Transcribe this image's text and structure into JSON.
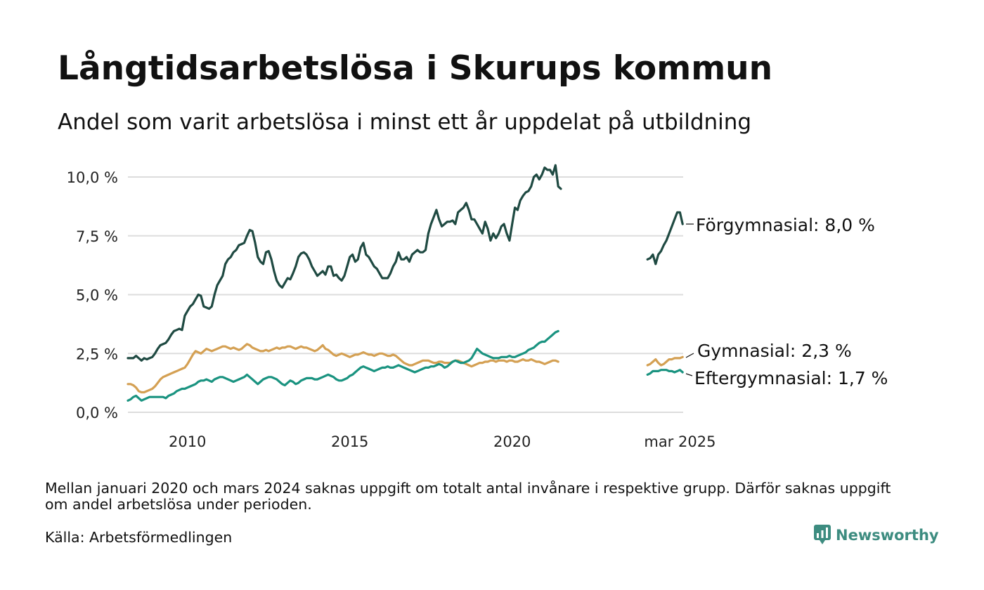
{
  "header": {
    "title": "Långtidsarbetslösa i Skurups kommun",
    "subtitle": "Andel som varit arbetslösa i minst ett år uppdelat på utbildning"
  },
  "footer": {
    "note": "Mellan januari 2020 och mars 2024 saknas uppgift om totalt antal invånare i respektive grupp. Därför saknas uppgift om andel arbetslösa under perioden.",
    "source": "Källa: Arbetsförmedlingen",
    "brand": "Newsworthy"
  },
  "icons": {
    "brand": "newsworthy-logo-icon"
  },
  "colors": {
    "forgymnasial": "#1f4a42",
    "gymnasial": "#d4a053",
    "eftergymnasial": "#1a9380",
    "grid": "#dddddd",
    "brand": "#3d8c80"
  },
  "chart_data": {
    "type": "line",
    "y_ticks": [
      "0,0 %",
      "2,5 %",
      "5,0 %",
      "7,5 %",
      "10,0 %"
    ],
    "y_tick_values": [
      0,
      2.5,
      5,
      7.5,
      10
    ],
    "x_ticks": [
      "2010",
      "2015",
      "2020",
      "mar 2025"
    ],
    "x_tick_values": [
      "2010-01",
      "2015-01",
      "2020-01",
      "2025-03"
    ],
    "ylim": [
      0,
      10.5
    ],
    "grid": true,
    "legend": "inline labels at line ends (right)",
    "annotations": [
      "Förgymnasial: 8,0 %",
      "Gymnasial: 2,3 %",
      "Eftergymnasial: 1,7 %"
    ],
    "series": [
      {
        "name": "Förgymnasial",
        "color_key": "forgymnasial",
        "segments": [
          {
            "start": "2008-03",
            "values": [
              2.3,
              2.3,
              2.3,
              2.4,
              2.3,
              2.2,
              2.3,
              2.25,
              2.3,
              2.35,
              2.5,
              2.7,
              2.85,
              2.9,
              2.95,
              3.1,
              3.3,
              3.45,
              3.5,
              3.55,
              3.5,
              4.1,
              4.3,
              4.5,
              4.6,
              4.8,
              5.0,
              4.95,
              4.5,
              4.45,
              4.4,
              4.5,
              5.0,
              5.4,
              5.6,
              5.8,
              6.3,
              6.5,
              6.6,
              6.8,
              6.9,
              7.1,
              7.15,
              7.2,
              7.5,
              7.75,
              7.7,
              7.2,
              6.6,
              6.4,
              6.3,
              6.8,
              6.85,
              6.5,
              6.0,
              5.6,
              5.4,
              5.3,
              5.5,
              5.7,
              5.65,
              5.9,
              6.2,
              6.6,
              6.75,
              6.8,
              6.7,
              6.5,
              6.2,
              6.0,
              5.8,
              5.9,
              6.0,
              5.85,
              6.2,
              6.2,
              5.8,
              5.85,
              5.7,
              5.6,
              5.8,
              6.2,
              6.6,
              6.7,
              6.4,
              6.5,
              7.0,
              7.2,
              6.7,
              6.6,
              6.4,
              6.2,
              6.1,
              5.9,
              5.7,
              5.7,
              5.7,
              5.9,
              6.2,
              6.4,
              6.8,
              6.5,
              6.5,
              6.6,
              6.4,
              6.7,
              6.8,
              6.9,
              6.8,
              6.8,
              6.9,
              7.6,
              8.0,
              8.3,
              8.6,
              8.2,
              7.9,
              8.0,
              8.1,
              8.1,
              8.15,
              8.0,
              8.5,
              8.6,
              8.7,
              8.9,
              8.6,
              8.2,
              8.2,
              8.0,
              7.8,
              7.6,
              8.1,
              7.8,
              7.3,
              7.6,
              7.4,
              7.6,
              7.9,
              8.0,
              7.6,
              7.3,
              8.0,
              8.7,
              8.6,
              9.0,
              9.2,
              9.35,
              9.4,
              9.6,
              10.0,
              10.1,
              9.9,
              10.1,
              10.4,
              10.3,
              10.3,
              10.1,
              10.5,
              9.6,
              9.5
            ]
          },
          {
            "start": "2024-03",
            "values": [
              6.5,
              6.55,
              6.7,
              6.3,
              6.7,
              6.85,
              7.1,
              7.3,
              7.6,
              7.9,
              8.2,
              8.5,
              8.5,
              8.0
            ]
          }
        ]
      },
      {
        "name": "Gymnasial",
        "color_key": "gymnasial",
        "segments": [
          {
            "start": "2008-03",
            "values": [
              1.2,
              1.2,
              1.15,
              1.05,
              0.9,
              0.85,
              0.85,
              0.9,
              0.95,
              1.0,
              1.1,
              1.25,
              1.4,
              1.5,
              1.55,
              1.6,
              1.65,
              1.7,
              1.75,
              1.8,
              1.85,
              1.9,
              2.05,
              2.25,
              2.45,
              2.6,
              2.55,
              2.5,
              2.6,
              2.7,
              2.65,
              2.6,
              2.65,
              2.7,
              2.75,
              2.8,
              2.8,
              2.75,
              2.7,
              2.75,
              2.7,
              2.65,
              2.7,
              2.8,
              2.9,
              2.85,
              2.75,
              2.7,
              2.65,
              2.6,
              2.6,
              2.65,
              2.6,
              2.65,
              2.7,
              2.75,
              2.7,
              2.75,
              2.75,
              2.8,
              2.8,
              2.75,
              2.7,
              2.75,
              2.8,
              2.75,
              2.75,
              2.7,
              2.65,
              2.6,
              2.65,
              2.75,
              2.85,
              2.7,
              2.65,
              2.55,
              2.45,
              2.4,
              2.45,
              2.5,
              2.45,
              2.4,
              2.35,
              2.4,
              2.45,
              2.45,
              2.5,
              2.55,
              2.5,
              2.45,
              2.45,
              2.4,
              2.45,
              2.5,
              2.5,
              2.45,
              2.4,
              2.4,
              2.45,
              2.4,
              2.3,
              2.2,
              2.1,
              2.05,
              2.0,
              2.0,
              2.05,
              2.1,
              2.15,
              2.2,
              2.2,
              2.2,
              2.15,
              2.1,
              2.1,
              2.15,
              2.15,
              2.1,
              2.1,
              2.1,
              2.15,
              2.2,
              2.2,
              2.15,
              2.1,
              2.05,
              2.0,
              1.95,
              2.0,
              2.05,
              2.1,
              2.1,
              2.15,
              2.15,
              2.2,
              2.2,
              2.15,
              2.2,
              2.2,
              2.2,
              2.15,
              2.2,
              2.2,
              2.15,
              2.15,
              2.2,
              2.25,
              2.2,
              2.2,
              2.25,
              2.2,
              2.15,
              2.15,
              2.1,
              2.05,
              2.1,
              2.15,
              2.2,
              2.2,
              2.15
            ]
          },
          {
            "start": "2024-03",
            "values": [
              2.0,
              2.05,
              2.15,
              2.25,
              2.1,
              2.0,
              2.05,
              2.15,
              2.25,
              2.25,
              2.3,
              2.3,
              2.3,
              2.35
            ]
          }
        ]
      },
      {
        "name": "Eftergymnasial",
        "color_key": "eftergymnasial",
        "segments": [
          {
            "start": "2008-03",
            "values": [
              0.5,
              0.55,
              0.65,
              0.7,
              0.6,
              0.5,
              0.55,
              0.6,
              0.65,
              0.65,
              0.65,
              0.65,
              0.65,
              0.65,
              0.6,
              0.7,
              0.75,
              0.8,
              0.9,
              0.95,
              1.0,
              1.0,
              1.05,
              1.1,
              1.15,
              1.2,
              1.3,
              1.35,
              1.35,
              1.4,
              1.35,
              1.3,
              1.4,
              1.45,
              1.5,
              1.5,
              1.45,
              1.4,
              1.35,
              1.3,
              1.35,
              1.4,
              1.45,
              1.5,
              1.6,
              1.5,
              1.4,
              1.3,
              1.2,
              1.3,
              1.4,
              1.45,
              1.5,
              1.5,
              1.45,
              1.4,
              1.3,
              1.2,
              1.15,
              1.25,
              1.35,
              1.3,
              1.2,
              1.25,
              1.35,
              1.4,
              1.45,
              1.45,
              1.45,
              1.4,
              1.4,
              1.45,
              1.5,
              1.55,
              1.6,
              1.55,
              1.5,
              1.4,
              1.35,
              1.35,
              1.4,
              1.45,
              1.55,
              1.6,
              1.7,
              1.8,
              1.9,
              1.95,
              1.9,
              1.85,
              1.8,
              1.75,
              1.8,
              1.85,
              1.9,
              1.9,
              1.95,
              1.9,
              1.9,
              1.95,
              2.0,
              1.95,
              1.9,
              1.85,
              1.8,
              1.75,
              1.7,
              1.75,
              1.8,
              1.85,
              1.9,
              1.9,
              1.95,
              1.95,
              2.0,
              2.05,
              2.0,
              1.9,
              1.95,
              2.05,
              2.15,
              2.2,
              2.15,
              2.1,
              2.1,
              2.15,
              2.2,
              2.3,
              2.5,
              2.7,
              2.6,
              2.5,
              2.45,
              2.4,
              2.35,
              2.3,
              2.3,
              2.3,
              2.35,
              2.35,
              2.35,
              2.4,
              2.35,
              2.35,
              2.4,
              2.45,
              2.5,
              2.55,
              2.65,
              2.7,
              2.75,
              2.85,
              2.95,
              3.0,
              3.0,
              3.1,
              3.2,
              3.3,
              3.4,
              3.45
            ]
          },
          {
            "start": "2024-03",
            "values": [
              1.6,
              1.65,
              1.75,
              1.75,
              1.75,
              1.8,
              1.8,
              1.8,
              1.75,
              1.75,
              1.7,
              1.75,
              1.8,
              1.7
            ]
          }
        ]
      }
    ]
  }
}
